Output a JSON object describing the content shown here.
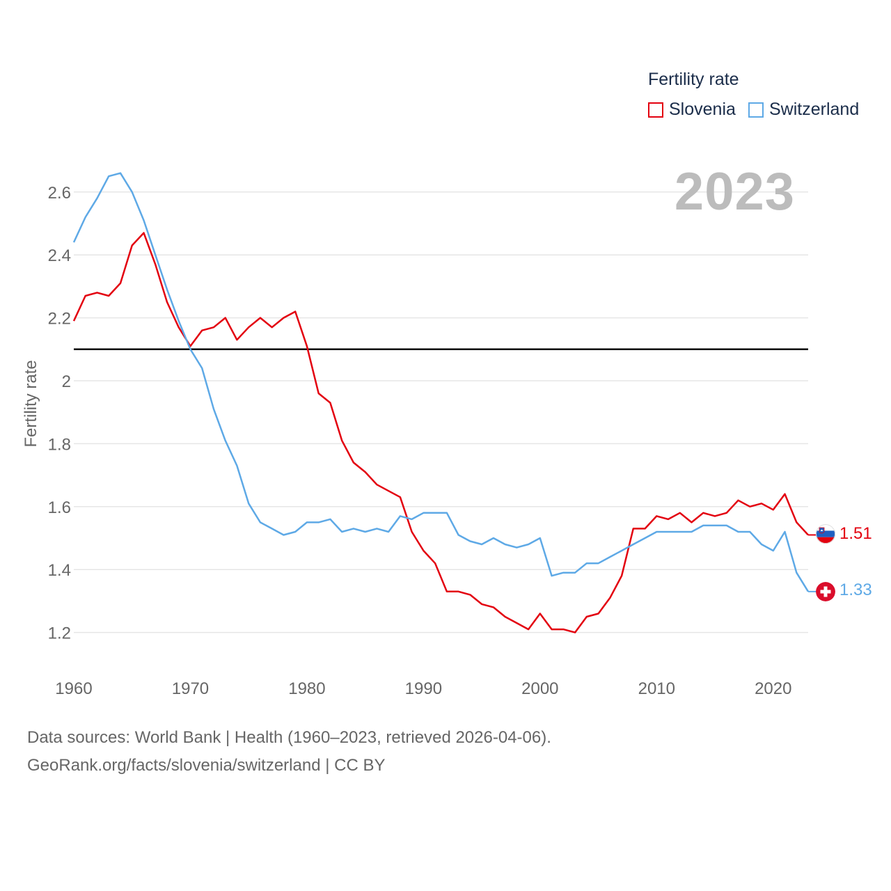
{
  "legend": {
    "title": "Fertility rate",
    "series": [
      {
        "label": "Slovenia",
        "color": "#e3000f"
      },
      {
        "label": "Switzerland",
        "color": "#5ea9e6"
      }
    ]
  },
  "current_year": "2023",
  "footer": {
    "line1": "Data sources: World Bank | Health (1960–2023, retrieved 2026-04-06).",
    "line2": "GeoRank.org/facts/slovenia/switzerland | CC BY"
  },
  "end_labels": {
    "slovenia": "1.51",
    "switzerland": "1.33"
  },
  "flags": {
    "slovenia": "slovenia-flag",
    "switzerland": "switzerland-flag"
  },
  "chart_data": {
    "type": "line",
    "title": "",
    "xlabel": "",
    "ylabel": "Fertility rate",
    "xlim": [
      1960,
      2023
    ],
    "ylim": [
      1.1,
      2.7
    ],
    "x_ticks": [
      1960,
      1970,
      1980,
      1990,
      2000,
      2010,
      2020
    ],
    "y_ticks": [
      1.2,
      1.4,
      1.6,
      1.8,
      2,
      2.2,
      2.4,
      2.6
    ],
    "y_tick_labels": [
      "1.2",
      "1.4",
      "1.6",
      "1.8",
      "2",
      "2.2",
      "2.4",
      "2.6"
    ],
    "reference_line": 2.1,
    "x": [
      1960,
      1961,
      1962,
      1963,
      1964,
      1965,
      1966,
      1967,
      1968,
      1969,
      1970,
      1971,
      1972,
      1973,
      1974,
      1975,
      1976,
      1977,
      1978,
      1979,
      1980,
      1981,
      1982,
      1983,
      1984,
      1985,
      1986,
      1987,
      1988,
      1989,
      1990,
      1991,
      1992,
      1993,
      1994,
      1995,
      1996,
      1997,
      1998,
      1999,
      2000,
      2001,
      2002,
      2003,
      2004,
      2005,
      2006,
      2007,
      2008,
      2009,
      2010,
      2011,
      2012,
      2013,
      2014,
      2015,
      2016,
      2017,
      2018,
      2019,
      2020,
      2021,
      2022,
      2023
    ],
    "series": [
      {
        "name": "Slovenia",
        "color": "#e3000f",
        "values": [
          2.19,
          2.27,
          2.28,
          2.27,
          2.31,
          2.43,
          2.47,
          2.37,
          2.25,
          2.17,
          2.11,
          2.16,
          2.17,
          2.2,
          2.13,
          2.17,
          2.2,
          2.17,
          2.2,
          2.22,
          2.11,
          1.96,
          1.93,
          1.81,
          1.74,
          1.71,
          1.67,
          1.65,
          1.63,
          1.52,
          1.46,
          1.42,
          1.33,
          1.33,
          1.32,
          1.29,
          1.28,
          1.25,
          1.23,
          1.21,
          1.26,
          1.21,
          1.21,
          1.2,
          1.25,
          1.26,
          1.31,
          1.38,
          1.53,
          1.53,
          1.57,
          1.56,
          1.58,
          1.55,
          1.58,
          1.57,
          1.58,
          1.62,
          1.6,
          1.61,
          1.59,
          1.64,
          1.55,
          1.51
        ]
      },
      {
        "name": "Switzerland",
        "color": "#5ea9e6",
        "values": [
          2.44,
          2.52,
          2.58,
          2.65,
          2.66,
          2.6,
          2.51,
          2.4,
          2.29,
          2.19,
          2.1,
          2.04,
          1.91,
          1.81,
          1.73,
          1.61,
          1.55,
          1.53,
          1.51,
          1.52,
          1.55,
          1.55,
          1.56,
          1.52,
          1.53,
          1.52,
          1.53,
          1.52,
          1.57,
          1.56,
          1.58,
          1.58,
          1.58,
          1.51,
          1.49,
          1.48,
          1.5,
          1.48,
          1.47,
          1.48,
          1.5,
          1.38,
          1.39,
          1.39,
          1.42,
          1.42,
          1.44,
          1.46,
          1.48,
          1.5,
          1.52,
          1.52,
          1.52,
          1.52,
          1.54,
          1.54,
          1.54,
          1.52,
          1.52,
          1.48,
          1.46,
          1.52,
          1.39,
          1.33
        ]
      }
    ]
  }
}
